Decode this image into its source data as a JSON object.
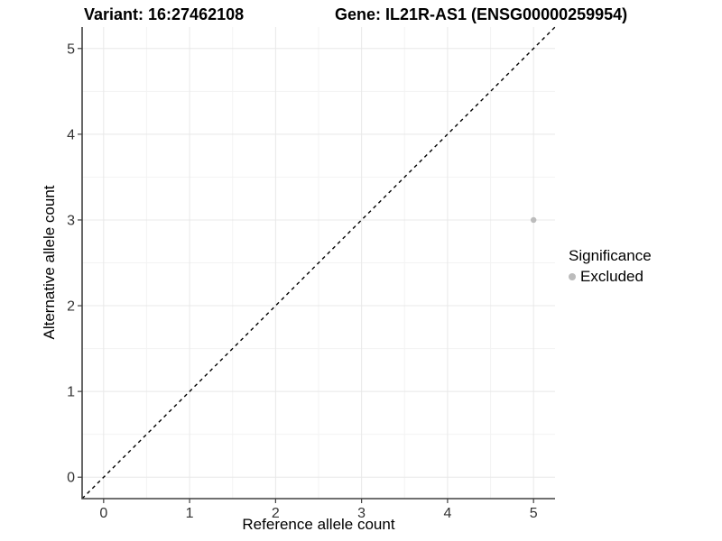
{
  "chart_data": {
    "type": "scatter",
    "titles": {
      "left": "Variant: 16:27462108",
      "right": "Gene: IL21R-AS1 (ENSG00000259954)"
    },
    "xlabel": "Reference allele count",
    "ylabel": "Alternative allele count",
    "xlim": [
      -0.25,
      5.25
    ],
    "ylim": [
      -0.25,
      5.25
    ],
    "xticks": [
      0,
      1,
      2,
      3,
      4,
      5
    ],
    "yticks": [
      0,
      1,
      2,
      3,
      4,
      5
    ],
    "minor_gridlines": [
      0.5,
      1.5,
      2.5,
      3.5,
      4.5
    ],
    "grid": "major+minor",
    "series": [
      {
        "name": "Excluded",
        "color": "#bcbcbc",
        "marker": "circle",
        "points": [
          {
            "x": 5,
            "y": 3
          }
        ]
      }
    ],
    "reference_line": {
      "type": "identity",
      "equation": "y = x",
      "style": "dashed",
      "color": "#000000",
      "from": [
        -0.25,
        -0.25
      ],
      "to": [
        5.25,
        5.25
      ]
    },
    "legend": {
      "title": "Significance",
      "position": "right",
      "items": [
        {
          "label": "Excluded",
          "color": "#bcbcbc",
          "marker": "circle"
        }
      ]
    },
    "style": {
      "background": "#ffffff",
      "grid_major_color": "#e8e8e8",
      "grid_minor_color": "#f3f3f3",
      "axis_color": "#404040",
      "tick_label_color": "#333333",
      "point_radius": 3.2
    }
  }
}
